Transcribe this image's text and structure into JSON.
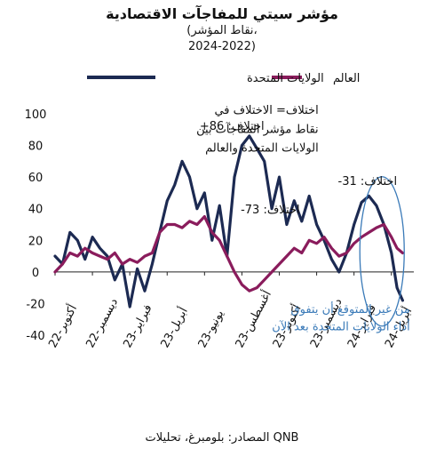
{
  "chart_data": {
    "type": "line",
    "title": "مؤشر سيتي للمفاجآت الاقتصادية",
    "subtitle_1": "(نقاط المؤشر،",
    "subtitle_2": "2024-2022)",
    "source": "المصادر: بلومبرغ، تحليلات QNB",
    "ylim": [
      -40,
      100
    ],
    "yticks": [
      -40,
      -20,
      0,
      20,
      40,
      60,
      80,
      100
    ],
    "xticks": [
      "أكتوبر-22",
      "ديسمبر-22",
      "فبراير-23",
      "أبريل-23",
      "يونيو-23",
      "أغسطس-23",
      "أكتوبر-23",
      "ديسمبر-23",
      "فبراير-24",
      "أبريل-24"
    ],
    "xlim": [
      0,
      19.2
    ],
    "legend": {
      "position": "top",
      "us": "الولايات المتحدة",
      "world": "العالم"
    },
    "colors": {
      "us": "#1c2a52",
      "world": "#8a1c5c",
      "highlight": "#3a7ab8"
    },
    "series": [
      {
        "name": "الولايات المتحدة",
        "key": "us",
        "x": [
          0,
          0.4,
          0.8,
          1.2,
          1.6,
          2,
          2.4,
          2.8,
          3.2,
          3.6,
          4,
          4.4,
          4.8,
          5.2,
          5.6,
          6,
          6.4,
          6.8,
          7.2,
          7.6,
          8,
          8.4,
          8.8,
          9.2,
          9.6,
          10,
          10.4,
          10.8,
          11.2,
          11.6,
          12,
          12.4,
          12.8,
          13.2,
          13.6,
          14,
          14.4,
          14.8,
          15.2,
          15.6,
          16,
          16.4,
          16.8,
          17.2,
          17.6,
          18,
          18.3,
          18.6
        ],
        "y": [
          10,
          5,
          25,
          20,
          8,
          22,
          15,
          10,
          -5,
          5,
          -22,
          2,
          -12,
          5,
          25,
          45,
          55,
          70,
          60,
          40,
          50,
          20,
          42,
          10,
          60,
          80,
          86,
          78,
          70,
          40,
          60,
          30,
          45,
          32,
          48,
          30,
          20,
          8,
          0,
          12,
          30,
          44,
          48,
          42,
          30,
          12,
          -10,
          -18
        ]
      },
      {
        "name": "العالم",
        "key": "world",
        "x": [
          0,
          0.4,
          0.8,
          1.2,
          1.6,
          2,
          2.4,
          2.8,
          3.2,
          3.6,
          4,
          4.4,
          4.8,
          5.2,
          5.6,
          6,
          6.4,
          6.8,
          7.2,
          7.6,
          8,
          8.4,
          8.8,
          9.2,
          9.6,
          10,
          10.4,
          10.8,
          11.2,
          11.6,
          12,
          12.4,
          12.8,
          13.2,
          13.6,
          14,
          14.4,
          14.8,
          15.2,
          15.6,
          16,
          16.4,
          16.8,
          17.2,
          17.6,
          18,
          18.3,
          18.6
        ],
        "y": [
          0,
          5,
          12,
          10,
          15,
          12,
          10,
          8,
          12,
          5,
          8,
          6,
          10,
          12,
          25,
          30,
          30,
          28,
          32,
          30,
          35,
          25,
          20,
          10,
          0,
          -8,
          -12,
          -10,
          -5,
          0,
          5,
          10,
          15,
          12,
          20,
          18,
          22,
          15,
          10,
          12,
          18,
          22,
          25,
          28,
          30,
          22,
          15,
          12
        ]
      }
    ],
    "annotations": [
      {
        "text": "اختلاف= الاختلاف في",
        "x": 14.1,
        "y": 100
      },
      {
        "text": "نقاط مؤشر المفاجآت بين",
        "x": 14.1,
        "y": 88
      },
      {
        "text": "الولايات المتحدة والعالم",
        "x": 14.1,
        "y": 76
      },
      {
        "text": "اختلاف: 73-",
        "x": 13.1,
        "y": 37
      },
      {
        "text": "اختلاف: 86+",
        "x": 11.2,
        "y": 90
      },
      {
        "text": "اختلاف: 31-",
        "x": 18.3,
        "y": 55
      },
      {
        "text": "من غير المتوقع أن يتفوق",
        "x": 19.0,
        "y": -26
      },
      {
        "text": "أداء الولايات المتحدة بعد الآن",
        "x": 19.0,
        "y": -37
      }
    ]
  }
}
